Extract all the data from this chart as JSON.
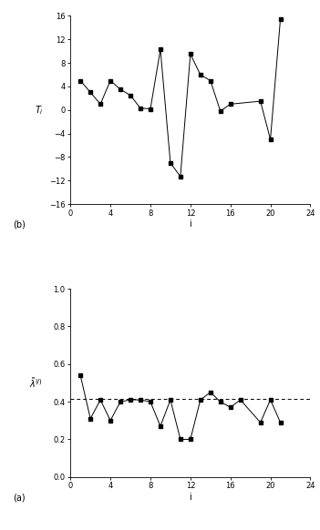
{
  "plot_a": {
    "x": [
      1,
      2,
      3,
      4,
      5,
      6,
      7,
      8,
      9,
      10,
      11,
      12,
      13,
      14,
      15,
      16,
      19,
      20,
      21
    ],
    "y": [
      5.0,
      3.0,
      1.0,
      5.0,
      3.5,
      2.5,
      0.3,
      0.2,
      10.3,
      -9.0,
      -11.3,
      9.5,
      6.0,
      5.0,
      -0.2,
      1.0,
      1.5,
      -5.0,
      15.5
    ],
    "ylabel": "$T_i$",
    "xlabel": "i",
    "ylim": [
      -16,
      16
    ],
    "xlim": [
      0,
      24
    ],
    "yticks": [
      -16,
      -12,
      -8,
      -4,
      0,
      4,
      8,
      12,
      16
    ],
    "xticks": [
      0,
      4,
      8,
      12,
      16,
      20,
      24
    ],
    "label": "(a)"
  },
  "plot_b": {
    "x": [
      1,
      2,
      3,
      4,
      5,
      6,
      7,
      8,
      9,
      10,
      11,
      12,
      13,
      14,
      15,
      16,
      17,
      19,
      20,
      21
    ],
    "y": [
      0.54,
      0.31,
      0.41,
      0.3,
      0.4,
      0.41,
      0.41,
      0.4,
      0.27,
      0.41,
      0.2,
      0.2,
      0.41,
      0.45,
      0.4,
      0.37,
      0.41,
      0.29,
      0.41,
      0.29
    ],
    "dashed_y": 0.415,
    "ylabel": "$\\tilde{\\lambda}^{(i)}$",
    "xlabel": "i",
    "ylim": [
      0.0,
      1.0
    ],
    "xlim": [
      0,
      24
    ],
    "yticks": [
      0.0,
      0.2,
      0.4,
      0.6,
      0.8,
      1.0
    ],
    "xticks": [
      0,
      4,
      8,
      12,
      16,
      20,
      24
    ],
    "label": "(b)"
  },
  "line_color": "#000000",
  "marker": "s",
  "markersize": 2.5,
  "linewidth": 0.7,
  "tick_fontsize": 6,
  "label_fontsize": 7,
  "annot_fontsize": 7,
  "bg_color": "#ffffff"
}
